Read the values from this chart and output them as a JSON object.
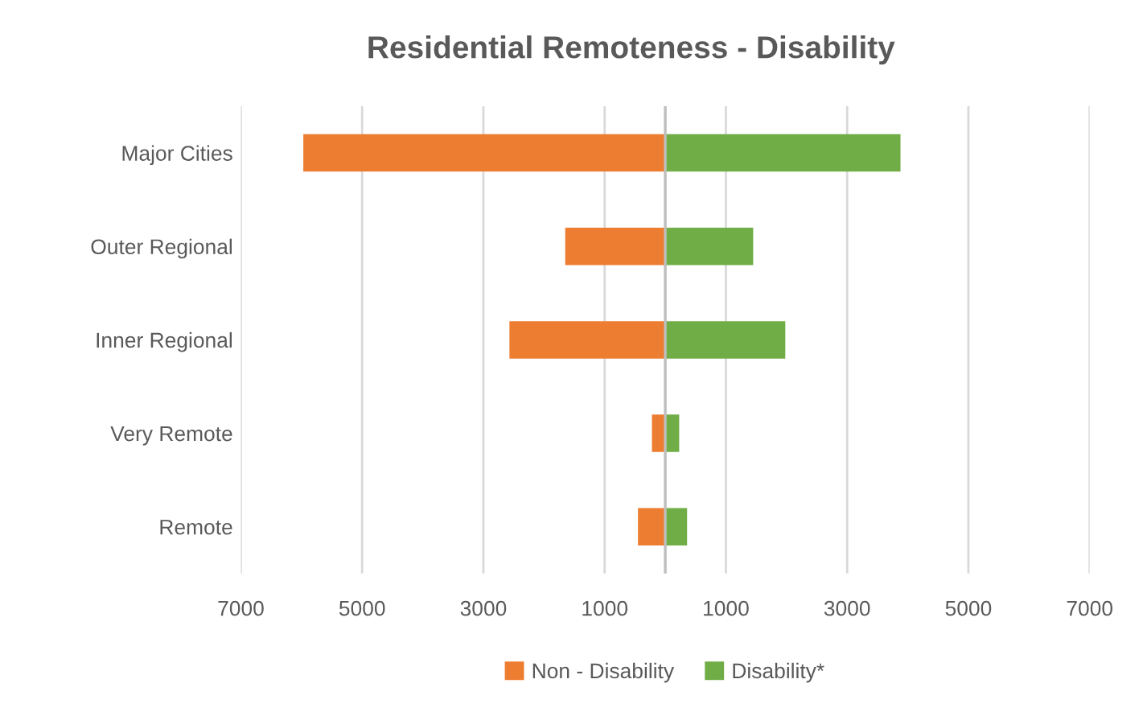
{
  "chart_data": {
    "type": "bar",
    "orientation": "horizontal",
    "title": "Residential Remoteness - Disability",
    "categories": [
      "Major Cities",
      "Outer Regional",
      "Inner Regional",
      "Very Remote",
      "Remote"
    ],
    "series": [
      {
        "name": "Non - Disability",
        "color": "#ed7d31",
        "values": [
          -5970,
          -1650,
          -2570,
          -220,
          -450
        ]
      },
      {
        "name": "Disability*",
        "color": "#70ad47",
        "values": [
          3880,
          1450,
          1980,
          230,
          360
        ]
      }
    ],
    "xlim": [
      -7000,
      7000
    ],
    "xticks": [
      {
        "value": -7000,
        "label": "7000"
      },
      {
        "value": -5000,
        "label": "5000"
      },
      {
        "value": -3000,
        "label": "3000"
      },
      {
        "value": -1000,
        "label": "1000"
      },
      {
        "value": 0,
        "label": null
      },
      1000,
      3000,
      5000,
      7000
    ],
    "grid": "x",
    "legend": "bottom",
    "stacked": true
  }
}
